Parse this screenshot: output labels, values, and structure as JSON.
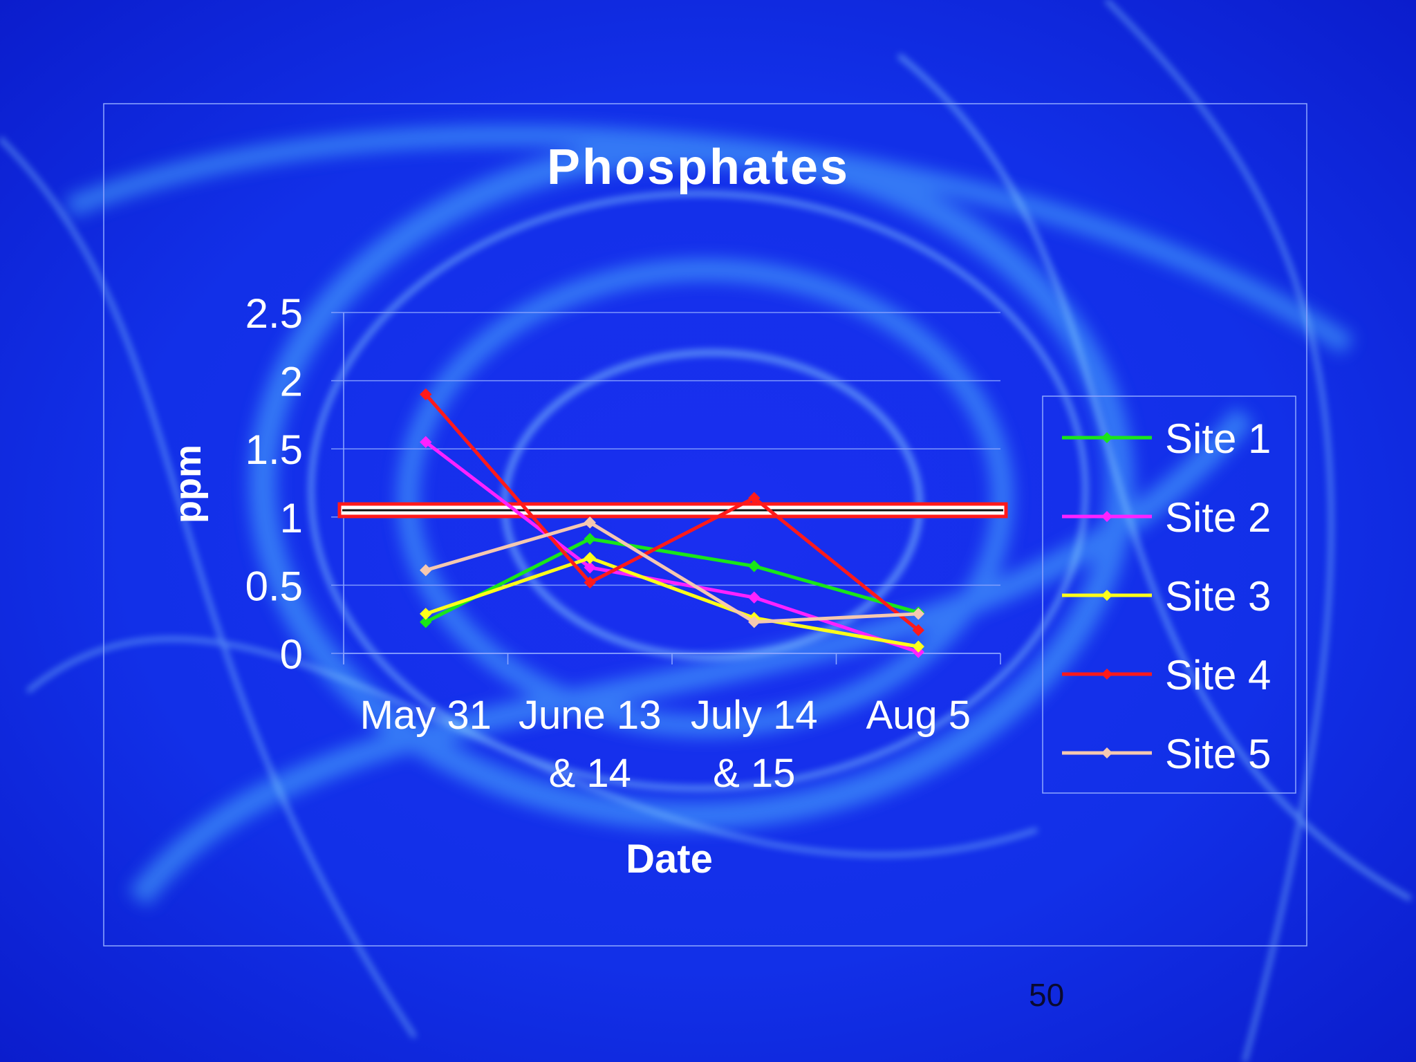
{
  "slide": {
    "number": "50"
  },
  "colors": {
    "background": "#0c1ee0",
    "text": "#ffffff",
    "gridline": "#8fa8ff",
    "threshold": "#ff1a1a"
  },
  "chart_data": {
    "type": "line",
    "title": "Phosphates",
    "xlabel": "Date",
    "ylabel": "ppm",
    "categories": [
      [
        "May 31"
      ],
      [
        "June 13",
        "& 14"
      ],
      [
        "July 14",
        "& 15"
      ],
      [
        "Aug 5"
      ]
    ],
    "yticks": [
      "0",
      "0.5",
      "1",
      "1.5",
      "2",
      "2.5"
    ],
    "ylim": [
      0,
      2.5
    ],
    "grid": true,
    "legend_position": "right",
    "threshold": {
      "value": 1.05,
      "color": "#ff1a1a"
    },
    "series": [
      {
        "name": "Site 1",
        "color": "#19e619",
        "values": [
          0.23,
          0.84,
          0.64,
          0.3
        ]
      },
      {
        "name": "Site 2",
        "color": "#ff22ff",
        "values": [
          1.55,
          0.63,
          0.41,
          0.01
        ]
      },
      {
        "name": "Site 3",
        "color": "#ffff1a",
        "values": [
          0.29,
          0.7,
          0.26,
          0.05
        ]
      },
      {
        "name": "Site 4",
        "color": "#ff1a1a",
        "values": [
          1.9,
          0.52,
          1.14,
          0.17
        ]
      },
      {
        "name": "Site 5",
        "color": "#f5c8b0",
        "values": [
          0.61,
          0.96,
          0.23,
          0.29
        ]
      }
    ]
  }
}
